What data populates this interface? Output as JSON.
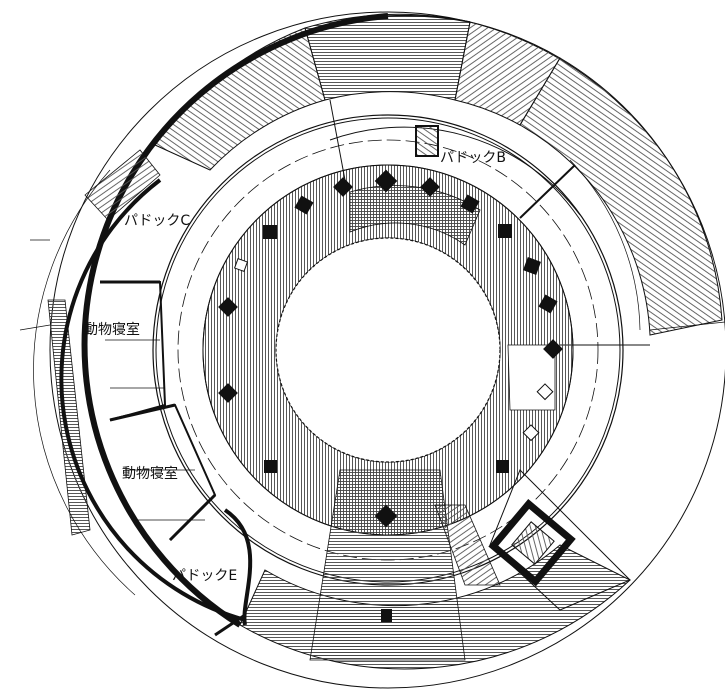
{
  "plan": {
    "rooms": {
      "paddock_b": "パドックB",
      "paddock_c": "パドックC",
      "paddock_e": "パドックE",
      "animal_room_upper": "動物寝室",
      "animal_room_lower": "動物寝室"
    },
    "colors": {
      "line": "#111111",
      "hatch": "#555555",
      "background": "#ffffff"
    }
  }
}
